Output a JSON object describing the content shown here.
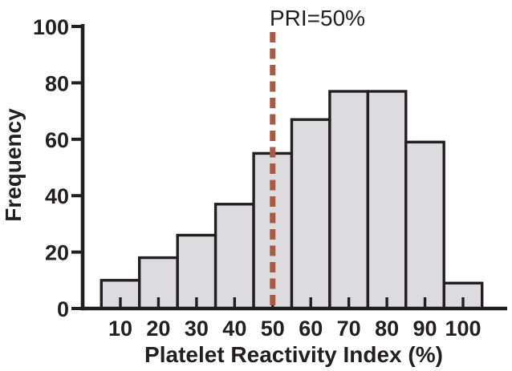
{
  "figure": {
    "background": "#ffffff"
  },
  "chart_data": {
    "type": "bar",
    "subtype": "histogram",
    "annotation": "PRI=50%",
    "xlabel": "Platelet Reactivity Index (%)",
    "ylabel": "Frequency",
    "categories": [
      10,
      20,
      30,
      40,
      50,
      60,
      70,
      80,
      90,
      100
    ],
    "values": [
      10,
      18,
      26,
      37,
      55,
      67,
      77,
      77,
      59,
      9
    ],
    "ylim": [
      0,
      100
    ],
    "yticks": [
      0,
      20,
      40,
      60,
      80,
      100
    ],
    "grid": false,
    "legend_position": "none",
    "reference_line": {
      "x": 50,
      "style": "dashed",
      "label": "PRI=50%"
    },
    "colors": {
      "bar_fill": "#dcdcde",
      "bar_border": "#231f20",
      "axis": "#231f20",
      "text": "#231f20",
      "reference_line": "#a75a45"
    }
  }
}
